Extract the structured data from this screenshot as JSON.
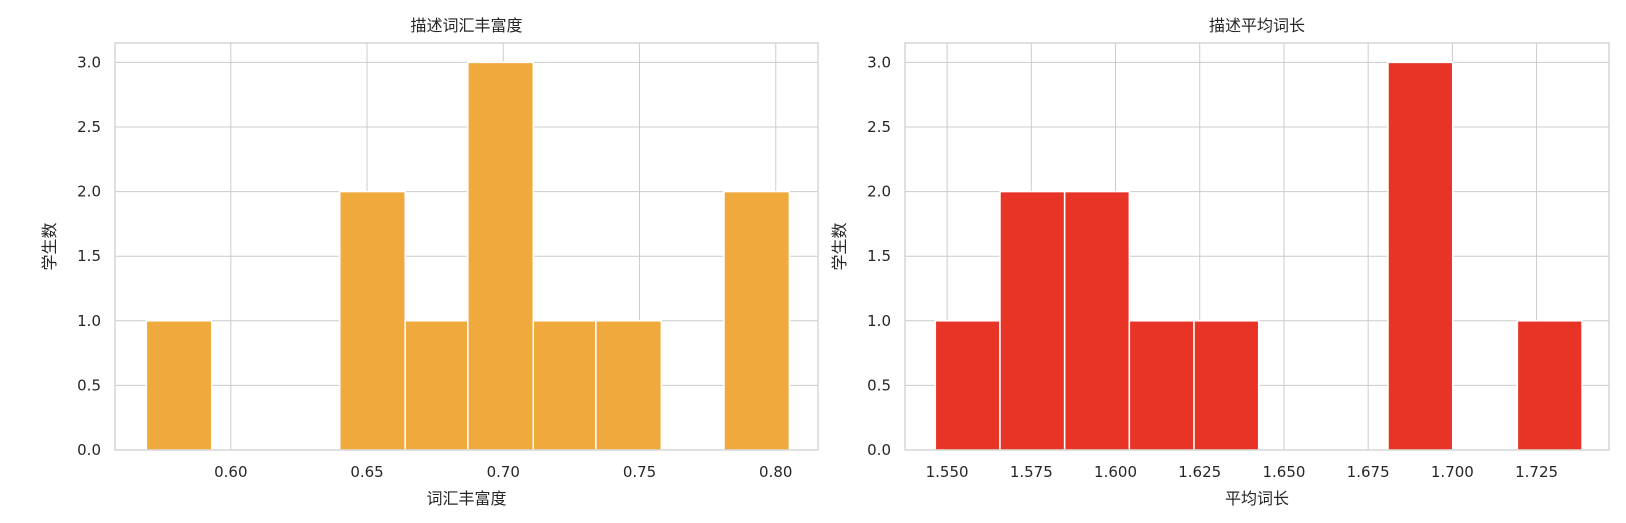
{
  "chart_data": [
    {
      "type": "bar",
      "title": "描述词汇丰富度",
      "xlabel": "词汇丰富度",
      "ylabel": "学生数",
      "color": "#f0a93d",
      "xlim": [
        0.5575,
        0.8155
      ],
      "ylim": [
        0,
        3.15
      ],
      "xticks": [
        0.6,
        0.65,
        0.7,
        0.75,
        0.8
      ],
      "xtick_labels": [
        "0.60",
        "0.65",
        "0.70",
        "0.75",
        "0.80"
      ],
      "yticks": [
        0,
        0.5,
        1,
        1.5,
        2,
        2.5,
        3
      ],
      "ytick_labels": [
        "0.0",
        "0.5",
        "1.0",
        "1.5",
        "2.0",
        "2.5",
        "3.0"
      ],
      "bins": [
        {
          "x0": 0.569,
          "x1": 0.593,
          "count": 1
        },
        {
          "x0": 0.593,
          "x1": 0.617,
          "count": 0
        },
        {
          "x0": 0.617,
          "x1": 0.64,
          "count": 0
        },
        {
          "x0": 0.64,
          "x1": 0.664,
          "count": 2
        },
        {
          "x0": 0.664,
          "x1": 0.687,
          "count": 1
        },
        {
          "x0": 0.687,
          "x1": 0.711,
          "count": 3
        },
        {
          "x0": 0.711,
          "x1": 0.734,
          "count": 1
        },
        {
          "x0": 0.734,
          "x1": 0.758,
          "count": 1
        },
        {
          "x0": 0.758,
          "x1": 0.781,
          "count": 0
        },
        {
          "x0": 0.781,
          "x1": 0.805,
          "count": 2
        }
      ]
    },
    {
      "type": "bar",
      "title": "描述平均词长",
      "xlabel": "平均词长",
      "ylabel": "学生数",
      "color": "#e83426",
      "xlim": [
        1.5375,
        1.7465
      ],
      "ylim": [
        0,
        3.15
      ],
      "xticks": [
        1.55,
        1.575,
        1.6,
        1.625,
        1.65,
        1.675,
        1.7,
        1.725
      ],
      "xtick_labels": [
        "1.550",
        "1.575",
        "1.600",
        "1.625",
        "1.650",
        "1.675",
        "1.700",
        "1.725"
      ],
      "yticks": [
        0,
        0.5,
        1,
        1.5,
        2,
        2.5,
        3
      ],
      "ytick_labels": [
        "0.0",
        "0.5",
        "1.0",
        "1.5",
        "2.0",
        "2.5",
        "3.0"
      ],
      "bins": [
        {
          "x0": 1.5465,
          "x1": 1.5657,
          "count": 1
        },
        {
          "x0": 1.5657,
          "x1": 1.5849,
          "count": 2
        },
        {
          "x0": 1.5849,
          "x1": 1.6041,
          "count": 2
        },
        {
          "x0": 1.6041,
          "x1": 1.6233,
          "count": 1
        },
        {
          "x0": 1.6233,
          "x1": 1.6425,
          "count": 1
        },
        {
          "x0": 1.6425,
          "x1": 1.6617,
          "count": 0
        },
        {
          "x0": 1.6617,
          "x1": 1.6809,
          "count": 0
        },
        {
          "x0": 1.6809,
          "x1": 1.7001,
          "count": 3
        },
        {
          "x0": 1.7001,
          "x1": 1.7193,
          "count": 0
        },
        {
          "x0": 1.7193,
          "x1": 1.7385,
          "count": 1
        }
      ]
    }
  ]
}
